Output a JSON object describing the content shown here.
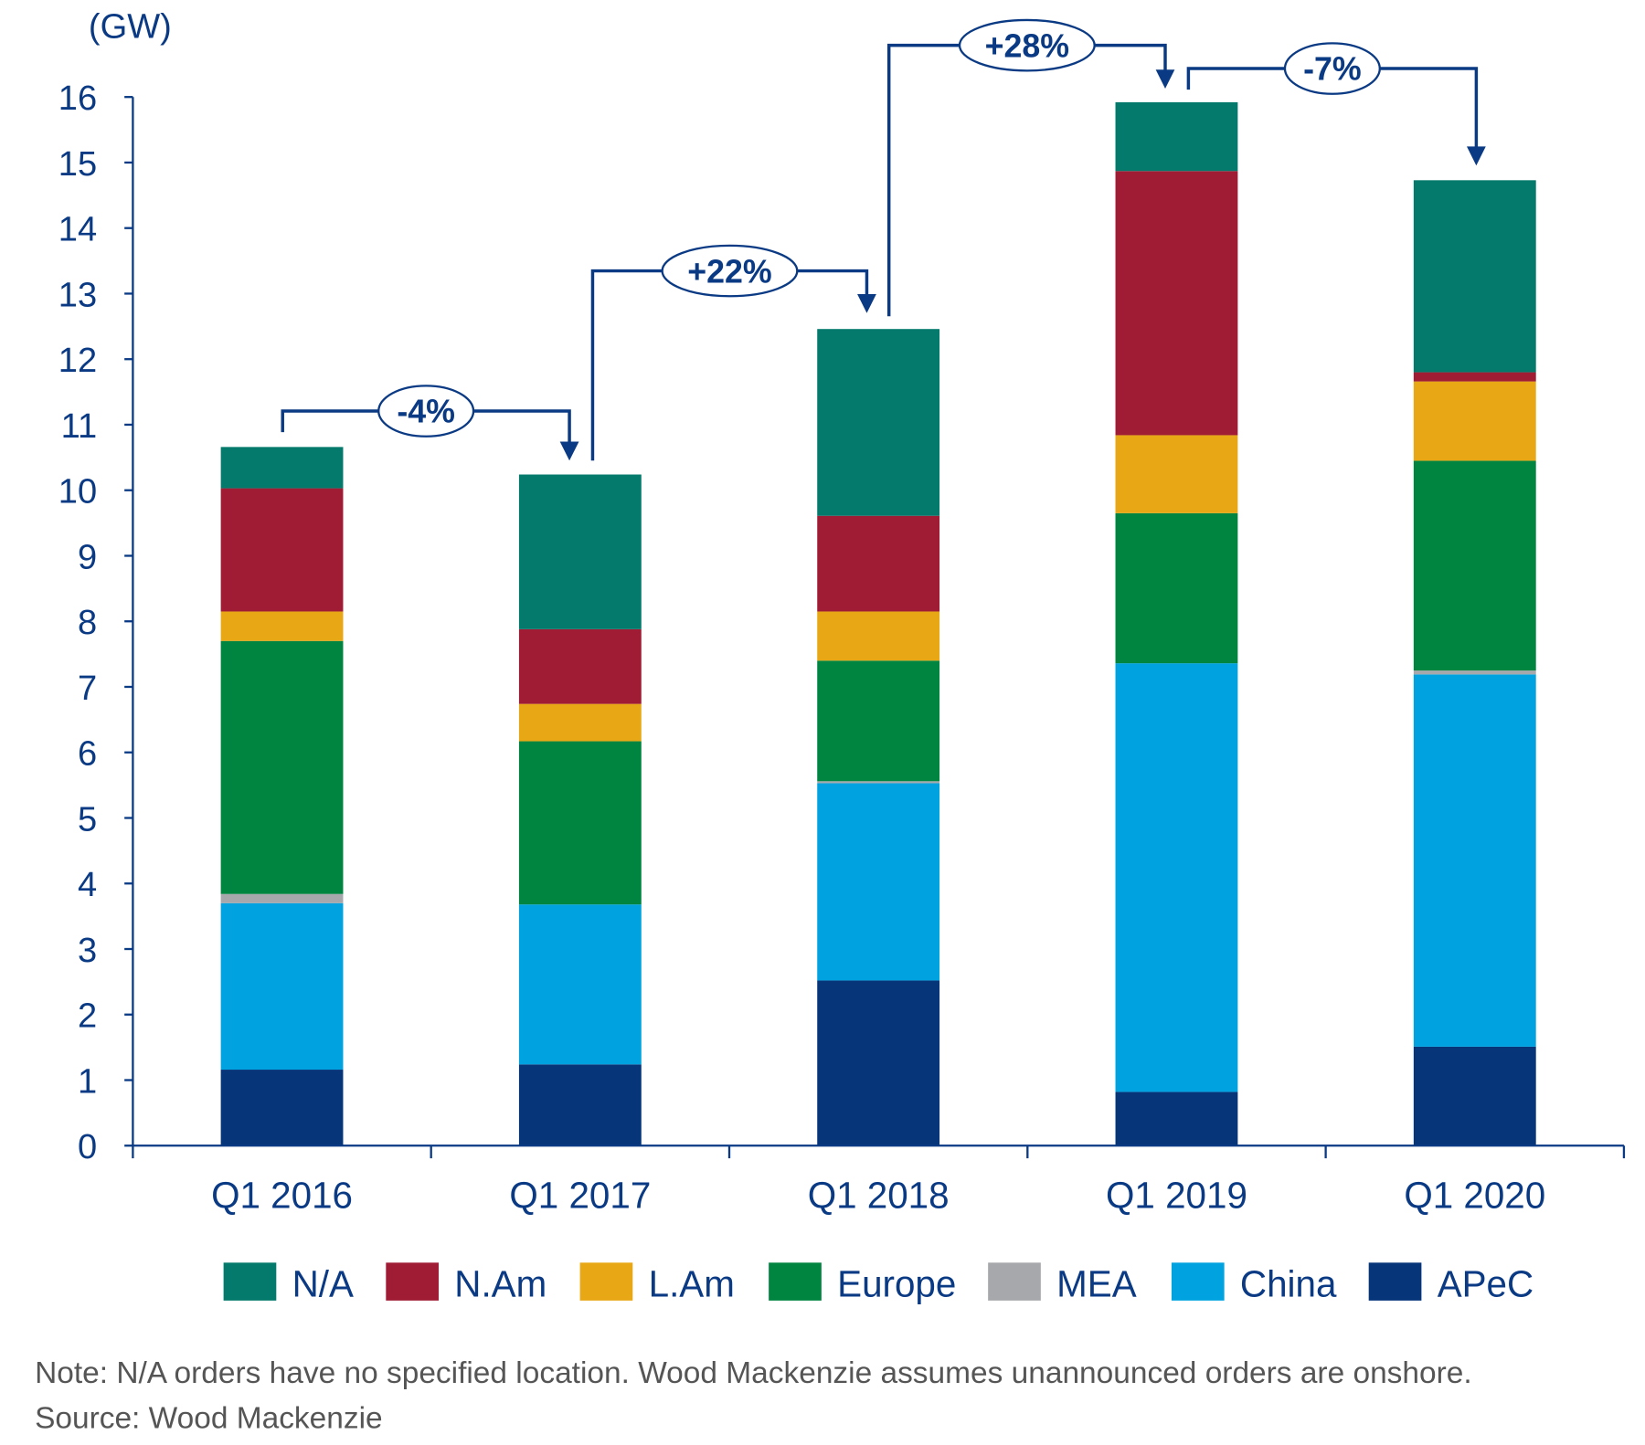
{
  "chart_data": {
    "type": "bar",
    "stacked": true,
    "unit_label": "(GW)",
    "ylim": [
      0,
      16
    ],
    "yticks": [
      "0",
      "1",
      "2",
      "3",
      "4",
      "5",
      "6",
      "7",
      "8",
      "9",
      "10",
      "11",
      "12",
      "13",
      "14",
      "15",
      "16"
    ],
    "categories": [
      "Q1 2016",
      "Q1 2017",
      "Q1 2018",
      "Q1 2019",
      "Q1 2020"
    ],
    "series": [
      {
        "name": "APeC",
        "color": "#06357a",
        "values": [
          1.16,
          1.24,
          2.52,
          0.82,
          1.51
        ]
      },
      {
        "name": "China",
        "color": "#00a3e0",
        "values": [
          2.54,
          2.44,
          3.01,
          6.54,
          5.68
        ]
      },
      {
        "name": "MEA",
        "color": "#a7a8ab",
        "values": [
          0.14,
          0.0,
          0.03,
          0.0,
          0.06
        ]
      },
      {
        "name": "Europe",
        "color": "#008540",
        "values": [
          3.86,
          2.49,
          1.84,
          2.29,
          3.2
        ]
      },
      {
        "name": "L.Am",
        "color": "#e8a715",
        "values": [
          0.45,
          0.57,
          0.75,
          1.19,
          1.21
        ]
      },
      {
        "name": "N.Am",
        "color": "#a01c35",
        "values": [
          1.88,
          1.14,
          1.46,
          4.03,
          0.14
        ]
      },
      {
        "name": "N/A",
        "color": "#037a6c",
        "values": [
          0.63,
          2.36,
          2.85,
          1.05,
          2.93
        ]
      }
    ],
    "legend_order": [
      "N/A",
      "N.Am",
      "L.Am",
      "Europe",
      "MEA",
      "China",
      "APeC"
    ],
    "legend_placement": "bottom",
    "grid": false,
    "annotations": [
      {
        "from": "Q1 2016",
        "to": "Q1 2017",
        "label": "-4%"
      },
      {
        "from": "Q1 2017",
        "to": "Q1 2018",
        "label": "+22%"
      },
      {
        "from": "Q1 2018",
        "to": "Q1 2019",
        "label": "+28%"
      },
      {
        "from": "Q1 2019",
        "to": "Q1 2020",
        "label": "-7%"
      }
    ]
  },
  "footer": {
    "note": "Note: N/A orders have no specified location. Wood Mackenzie assumes unannounced orders are onshore.",
    "source": "Source: Wood Mackenzie"
  },
  "colors": {
    "axis": "#0b3a84",
    "text": "#0b3a84",
    "note": "#555555"
  }
}
